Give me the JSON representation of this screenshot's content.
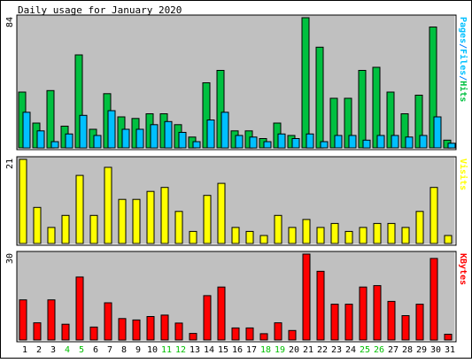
{
  "title": "Daily usage for January 2020",
  "chart_data": [
    {
      "type": "bar",
      "panel": "hits-files-pages",
      "categories": [
        "1",
        "2",
        "3",
        "4",
        "5",
        "6",
        "7",
        "8",
        "9",
        "10",
        "11",
        "12",
        "13",
        "14",
        "15",
        "16",
        "17",
        "18",
        "19",
        "20",
        "21",
        "22",
        "23",
        "24",
        "25",
        "26",
        "27",
        "28",
        "29",
        "30",
        "31"
      ],
      "weekend_days": [
        "4",
        "5",
        "11",
        "12",
        "18",
        "19",
        "25",
        "26"
      ],
      "series": [
        {
          "name": "Hits",
          "color": "#00c040",
          "values": [
            36,
            16,
            37,
            14,
            60,
            12,
            35,
            20,
            19,
            22,
            22,
            15,
            7,
            42,
            50,
            11,
            11,
            6,
            16,
            8,
            84,
            65,
            32,
            32,
            50,
            52,
            36,
            22,
            34,
            78,
            5
          ]
        },
        {
          "name": "Files",
          "color": "#00c0ff",
          "values": [
            23,
            11,
            4,
            9,
            21,
            8,
            24,
            12,
            12,
            15,
            17,
            10,
            4,
            18,
            23,
            8,
            7,
            4,
            9,
            6,
            9,
            4,
            8,
            8,
            5,
            8,
            8,
            7,
            8,
            20,
            3
          ]
        },
        {
          "name": "Pages",
          "color": "#0080ff",
          "values": [
            0,
            0,
            0,
            0,
            0,
            0,
            0,
            0,
            0,
            0,
            0,
            0,
            0,
            0,
            0,
            0,
            0,
            0,
            0,
            0,
            0,
            0,
            0,
            0,
            0,
            0,
            0,
            0,
            0,
            0,
            0
          ]
        }
      ],
      "axis_max_label": "84",
      "legend_parts": [
        {
          "text": "Pages",
          "color": "#00c0ff"
        },
        {
          "text": "/",
          "color": "#0080ff"
        },
        {
          "text": "Files",
          "color": "#00c0ff"
        },
        {
          "text": "/",
          "color": "#0080ff"
        },
        {
          "text": "Hits",
          "color": "#00c040"
        }
      ]
    },
    {
      "type": "bar",
      "panel": "visits",
      "categories": [
        "1",
        "2",
        "3",
        "4",
        "5",
        "6",
        "7",
        "8",
        "9",
        "10",
        "11",
        "12",
        "13",
        "14",
        "15",
        "16",
        "17",
        "18",
        "19",
        "20",
        "21",
        "22",
        "23",
        "24",
        "25",
        "26",
        "27",
        "28",
        "29",
        "30",
        "31"
      ],
      "series": [
        {
          "name": "Visits",
          "color": "#ffff00",
          "values": [
            21,
            9,
            4,
            7,
            17,
            7,
            19,
            11,
            11,
            13,
            14,
            8,
            3,
            12,
            15,
            4,
            3,
            2,
            7,
            4,
            6,
            4,
            5,
            3,
            4,
            5,
            5,
            4,
            8,
            14,
            2
          ]
        }
      ],
      "axis_max_label": "21",
      "legend_parts": [
        {
          "text": "Visits",
          "color": "#ffff00"
        }
      ]
    },
    {
      "type": "bar",
      "panel": "kbytes",
      "categories": [
        "1",
        "2",
        "3",
        "4",
        "5",
        "6",
        "7",
        "8",
        "9",
        "10",
        "11",
        "12",
        "13",
        "14",
        "15",
        "16",
        "17",
        "18",
        "19",
        "20",
        "21",
        "22",
        "23",
        "24",
        "25",
        "26",
        "27",
        "28",
        "29",
        "30",
        "31"
      ],
      "series": [
        {
          "name": "KBytes",
          "color": "#ff0000",
          "values": [
            14,
            6,
            14,
            5.5,
            22,
            4.5,
            13,
            7.5,
            7,
            8.2,
            8.7,
            5.9,
            2.3,
            15.5,
            18.5,
            4.2,
            4.2,
            2.2,
            6,
            3.3,
            30,
            24,
            12.5,
            12.5,
            18.5,
            19,
            13.5,
            8.5,
            12.5,
            28.5,
            2
          ]
        }
      ],
      "axis_max_label": "30",
      "legend_parts": [
        {
          "text": "KBytes",
          "color": "#ff0000"
        }
      ]
    }
  ],
  "colors": {
    "panel_bg": "#c0c0c0",
    "frame_outer": "#000000",
    "weekend_label": "#00c000",
    "weekday_label": "#000000",
    "bar_outline": "#000000"
  }
}
